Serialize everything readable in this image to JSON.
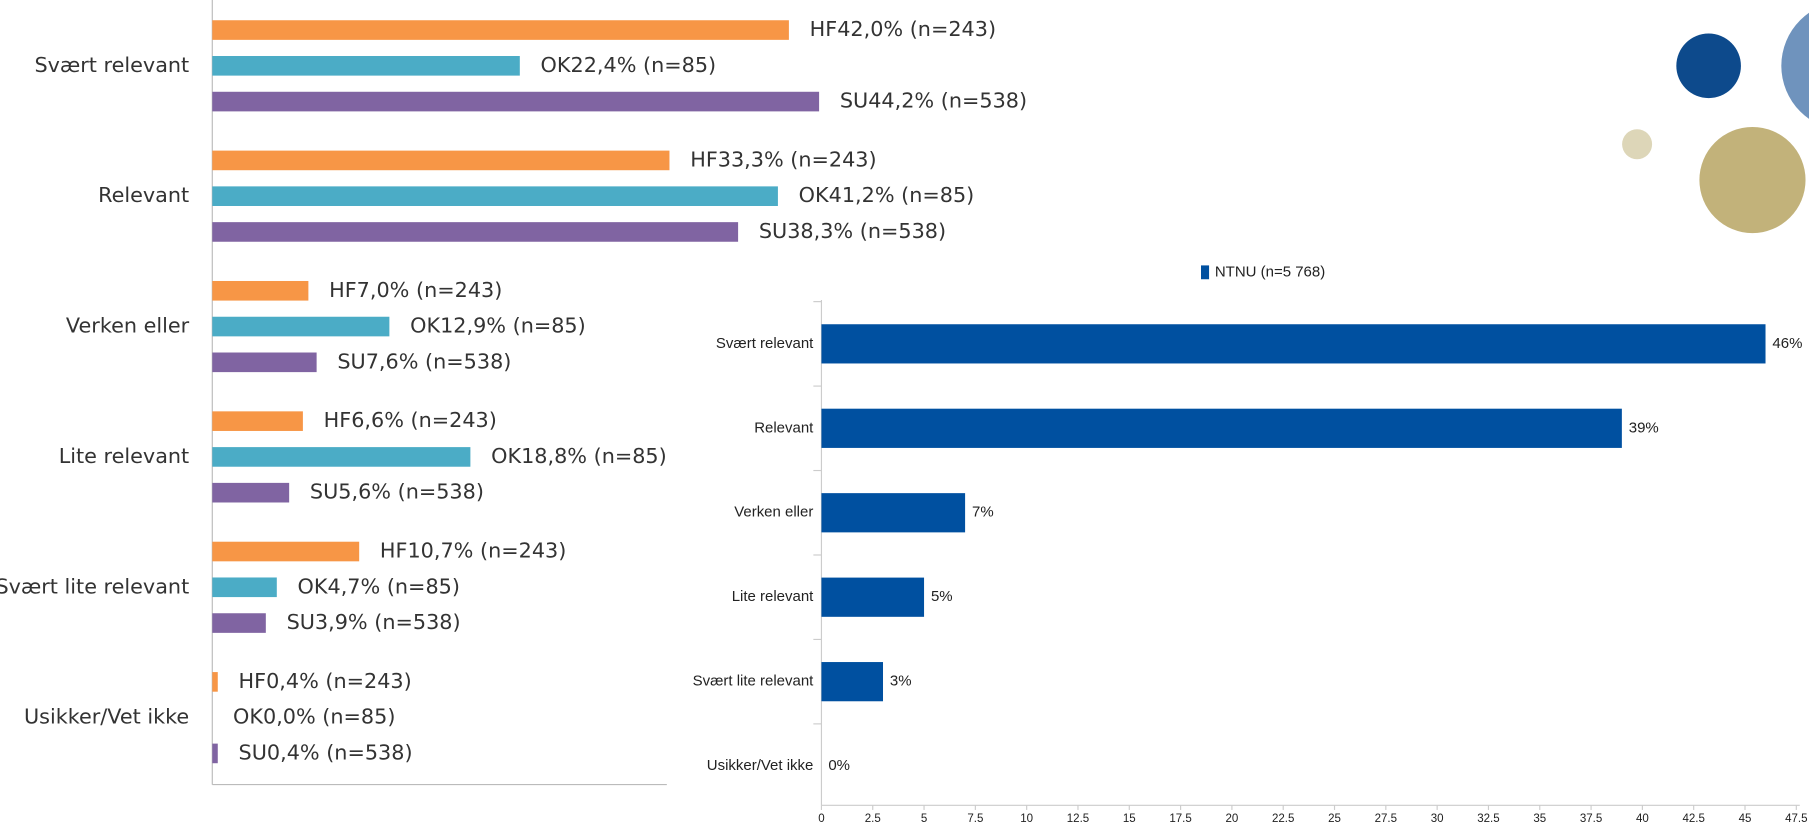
{
  "chart_data": [
    {
      "type": "grouped-bar",
      "categories": [
        "Svært relevant",
        "Relevant",
        "Verken eller",
        "Lite relevant",
        "Svært lite relevant",
        "Usikker/Vet ikke"
      ],
      "series": [
        {
          "color": "#f79646",
          "values": [
            42.0,
            33.3,
            7.0,
            6.6,
            10.7,
            0.4
          ],
          "value_labels": [
            "HF42,0% (n=243)",
            "HF33,3% (n=243)",
            "HF7,0% (n=243)",
            "HF6,6% (n=243)",
            "HF10,7% (n=243)",
            "HF0,4% (n=243)"
          ]
        },
        {
          "color": "#4bacc6",
          "values": [
            22.4,
            41.2,
            12.9,
            18.8,
            4.7,
            0.0
          ],
          "value_labels": [
            "OK22,4% (n=85)",
            "OK41,2% (n=85)",
            "OK12,9% (n=85)",
            "OK18,8% (n=85)",
            "OK4,7% (n=85)",
            "OK0,0% (n=85)"
          ]
        },
        {
          "color": "#8064a2",
          "values": [
            44.2,
            38.3,
            7.6,
            5.6,
            3.9,
            0.4
          ],
          "value_labels": [
            "SU44,2% (n=538)",
            "SU38,3% (n=538)",
            "SU7,6% (n=538)",
            "SU5,6% (n=538)",
            "SU3,9% (n=538)",
            "SU0,4% (n=538)"
          ]
        }
      ]
    },
    {
      "type": "hbar",
      "categories": [
        "Svært relevant",
        "Relevant",
        "Verken eller",
        "Lite relevant",
        "Svært lite relevant",
        "Usikker/Vet ikke"
      ],
      "series": [
        {
          "name": "NTNU (n=5 768)",
          "color": "#0050a0",
          "values": [
            46,
            39,
            7,
            5,
            3,
            0
          ],
          "value_labels": [
            "46%",
            "39%",
            "7%",
            "5%",
            "3%",
            "0%"
          ]
        }
      ],
      "xlim": [
        0,
        47.5
      ],
      "xticks": [
        0,
        2.5,
        5,
        7.5,
        10,
        12.5,
        15,
        17.5,
        20,
        22.5,
        25,
        27.5,
        30,
        32.5,
        35,
        37.5,
        40,
        42.5,
        45,
        47.5
      ],
      "legend": "top"
    }
  ]
}
